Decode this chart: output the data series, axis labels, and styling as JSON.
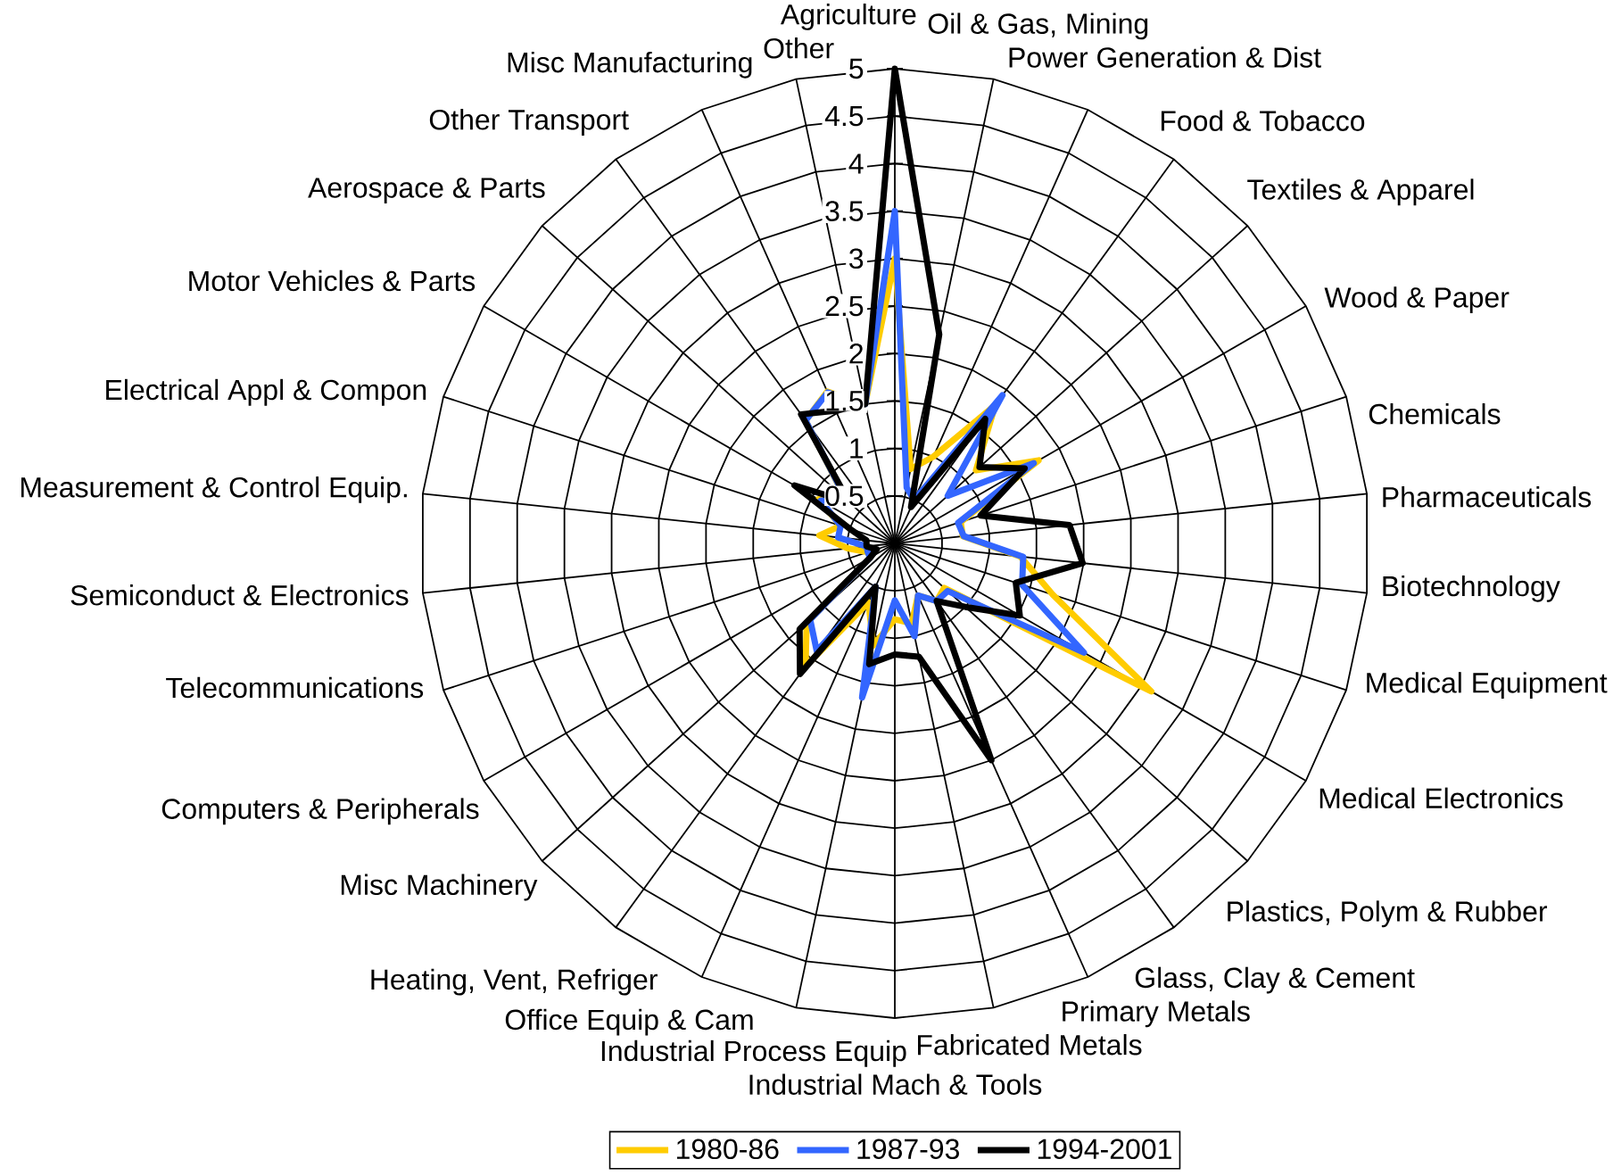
{
  "chart_data": {
    "type": "radar",
    "categories": [
      "Agriculture",
      "Oil & Gas, Mining",
      "Power Generation & Dist",
      "Food & Tobacco",
      "Textiles & Apparel",
      "Wood & Paper",
      "Chemicals",
      "Pharmaceuticals",
      "Biotechnology",
      "Medical Equipment",
      "Medical Electronics",
      "Plastics, Polym & Rubber",
      "Glass, Clay & Cement",
      "Primary Metals",
      "Fabricated Metals",
      "Industrial Mach & Tools",
      "Industrial Process Equip",
      "Office Equip & Cam",
      "Heating, Vent, Refriger",
      "Misc Machinery",
      "Computers & Peripherals",
      "Telecommunications",
      "Semiconduct & Electronics",
      "Measurement & Control Equip.",
      "Electrical Appl & Compon",
      "Motor Vehicles & Parts",
      "Aerospace & Parts",
      "Other Transport",
      "Misc Manufacturing",
      "Other"
    ],
    "series": [
      {
        "name": "1980-86",
        "color": "#ffcc00",
        "values": [
          3.0,
          0.8,
          1.0,
          1.8,
          1.15,
          1.75,
          0.73,
          0.72,
          1.33,
          1.75,
          3.12,
          0.7,
          0.75,
          0.6,
          0.86,
          0.8,
          1.1,
          0.68,
          1.6,
          1.25,
          0.3,
          0.3,
          0.5,
          0.8,
          0.6,
          0.93,
          0.7,
          1.6,
          1.75,
          1.5
        ]
      },
      {
        "name": "1987-93",
        "color": "#3366ff",
        "values": [
          3.5,
          0.6,
          0.5,
          1.93,
          0.75,
          1.69,
          0.7,
          0.73,
          1.36,
          1.41,
          2.3,
          0.75,
          0.75,
          0.6,
          1.0,
          0.6,
          1.66,
          0.5,
          1.4,
          1.2,
          0.3,
          0.3,
          0.3,
          0.6,
          0.6,
          0.9,
          0.69,
          1.6,
          1.74,
          1.5
        ]
      },
      {
        "name": "1994-2001",
        "color": "#000000",
        "values": [
          5.0,
          2.25,
          0.42,
          1.62,
          1.2,
          1.58,
          0.95,
          1.85,
          1.99,
          1.34,
          1.52,
          1.0,
          0.75,
          2.5,
          1.22,
          1.17,
          1.3,
          0.5,
          1.7,
          1.35,
          0.3,
          0.2,
          0.3,
          0.3,
          0.5,
          1.22,
          0.65,
          1.68,
          1.53,
          1.5
        ]
      }
    ],
    "ylim": [
      0,
      5
    ],
    "yticks": [
      0.5,
      1,
      1.5,
      2,
      2.5,
      3,
      3.5,
      4,
      4.5,
      5
    ],
    "grid": true,
    "legend": "bottom"
  }
}
